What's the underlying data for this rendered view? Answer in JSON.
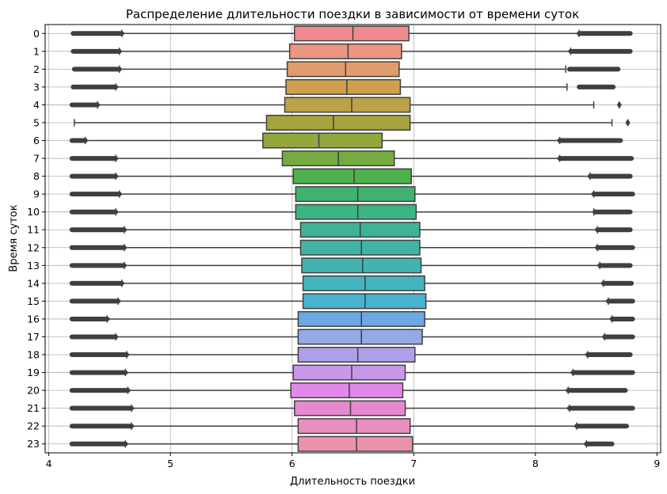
{
  "chart_data": {
    "type": "boxplot",
    "title": "Распределение длительности поездки в зависимости от времени суток",
    "xlabel": "Длительность поездки",
    "ylabel": "Время суток",
    "xlim": [
      3.97,
      9.03
    ],
    "xticks": [
      "4",
      "5",
      "6",
      "7",
      "8",
      "9"
    ],
    "orientation": "horizontal",
    "grid": true,
    "boxes": [
      {
        "label": "0",
        "color": "#ef8a91",
        "whisker_low": 4.6,
        "q1": 6.02,
        "median": 6.5,
        "q3": 6.96,
        "whisker_high": 8.36,
        "outliers_low": [
          4.2,
          4.6
        ],
        "outliers_high": [
          8.36,
          8.78
        ]
      },
      {
        "label": "1",
        "color": "#e99782",
        "whisker_low": 4.58,
        "q1": 5.98,
        "median": 6.46,
        "q3": 6.9,
        "whisker_high": 8.29,
        "outliers_low": [
          4.2,
          4.58
        ],
        "outliers_high": [
          8.29,
          8.78
        ]
      },
      {
        "label": "2",
        "color": "#e19c6c",
        "whisker_low": 4.58,
        "q1": 5.96,
        "median": 6.44,
        "q3": 6.88,
        "whisker_high": 8.25,
        "outliers_low": [
          4.21,
          4.58
        ],
        "outliers_high": [
          8.28,
          8.68
        ]
      },
      {
        "label": "3",
        "color": "#d09f4e",
        "whisker_low": 4.55,
        "q1": 5.95,
        "median": 6.45,
        "q3": 6.89,
        "whisker_high": 8.26,
        "outliers_low": [
          4.2,
          4.55
        ],
        "outliers_high": [
          8.36,
          8.64
        ]
      },
      {
        "label": "4",
        "color": "#bba347",
        "whisker_low": 4.4,
        "q1": 5.94,
        "median": 6.49,
        "q3": 6.97,
        "whisker_high": 8.48,
        "outliers_low": [
          4.19,
          4.4
        ],
        "outliers_high": [
          8.69,
          8.69
        ]
      },
      {
        "label": "5",
        "color": "#a7a43f",
        "whisker_low": 4.21,
        "q1": 5.79,
        "median": 6.34,
        "q3": 6.97,
        "whisker_high": 8.63,
        "outliers_low": [],
        "outliers_high": [
          8.76,
          8.76
        ]
      },
      {
        "label": "6",
        "color": "#92a73e",
        "whisker_low": 4.3,
        "q1": 5.76,
        "median": 6.22,
        "q3": 6.74,
        "whisker_high": 8.2,
        "outliers_low": [
          4.19,
          4.3
        ],
        "outliers_high": [
          8.2,
          8.7
        ]
      },
      {
        "label": "7",
        "color": "#74ac41",
        "whisker_low": 4.55,
        "q1": 5.92,
        "median": 6.38,
        "q3": 6.84,
        "whisker_high": 8.2,
        "outliers_low": [
          4.19,
          4.55
        ],
        "outliers_high": [
          8.2,
          8.79
        ]
      },
      {
        "label": "8",
        "color": "#4cb04d",
        "whisker_low": 4.55,
        "q1": 6.01,
        "median": 6.51,
        "q3": 6.98,
        "whisker_high": 8.45,
        "outliers_low": [
          4.19,
          4.55
        ],
        "outliers_high": [
          8.45,
          8.78
        ]
      },
      {
        "label": "9",
        "color": "#3db36f",
        "whisker_low": 4.58,
        "q1": 6.03,
        "median": 6.54,
        "q3": 7.01,
        "whisker_high": 8.48,
        "outliers_low": [
          4.19,
          4.58
        ],
        "outliers_high": [
          8.48,
          8.8
        ]
      },
      {
        "label": "10",
        "color": "#3eb383",
        "whisker_low": 4.55,
        "q1": 6.03,
        "median": 6.54,
        "q3": 7.02,
        "whisker_high": 8.48,
        "outliers_low": [
          4.19,
          4.55
        ],
        "outliers_high": [
          8.49,
          8.78
        ]
      },
      {
        "label": "11",
        "color": "#3fb395",
        "whisker_low": 4.62,
        "q1": 6.07,
        "median": 6.56,
        "q3": 7.05,
        "whisker_high": 8.51,
        "outliers_low": [
          4.19,
          4.62
        ],
        "outliers_high": [
          8.51,
          8.78
        ]
      },
      {
        "label": "12",
        "color": "#41b3a3",
        "whisker_low": 4.62,
        "q1": 6.07,
        "median": 6.57,
        "q3": 7.05,
        "whisker_high": 8.51,
        "outliers_low": [
          4.19,
          4.62
        ],
        "outliers_high": [
          8.51,
          8.8
        ]
      },
      {
        "label": "13",
        "color": "#42b3b1",
        "whisker_low": 4.62,
        "q1": 6.08,
        "median": 6.58,
        "q3": 7.06,
        "whisker_high": 8.53,
        "outliers_low": [
          4.19,
          4.62
        ],
        "outliers_high": [
          8.53,
          8.78
        ]
      },
      {
        "label": "14",
        "color": "#44b4bf",
        "whisker_low": 4.6,
        "q1": 6.09,
        "median": 6.6,
        "q3": 7.09,
        "whisker_high": 8.56,
        "outliers_low": [
          4.19,
          4.6
        ],
        "outliers_high": [
          8.56,
          8.79
        ]
      },
      {
        "label": "15",
        "color": "#48b2cf",
        "whisker_low": 4.57,
        "q1": 6.09,
        "median": 6.6,
        "q3": 7.1,
        "whisker_high": 8.6,
        "outliers_low": [
          4.19,
          4.57
        ],
        "outliers_high": [
          8.6,
          8.8
        ]
      },
      {
        "label": "16",
        "color": "#6aa9e3",
        "whisker_low": 4.48,
        "q1": 6.05,
        "median": 6.57,
        "q3": 7.09,
        "whisker_high": 8.63,
        "outliers_low": [
          4.19,
          4.48
        ],
        "outliers_high": [
          8.63,
          8.8
        ]
      },
      {
        "label": "17",
        "color": "#93aae4",
        "whisker_low": 4.55,
        "q1": 6.05,
        "median": 6.57,
        "q3": 7.07,
        "whisker_high": 8.57,
        "outliers_low": [
          4.19,
          4.55
        ],
        "outliers_high": [
          8.57,
          8.8
        ]
      },
      {
        "label": "18",
        "color": "#af9fe8",
        "whisker_low": 4.64,
        "q1": 6.05,
        "median": 6.54,
        "q3": 7.01,
        "whisker_high": 8.43,
        "outliers_low": [
          4.19,
          4.64
        ],
        "outliers_high": [
          8.43,
          8.78
        ]
      },
      {
        "label": "19",
        "color": "#c897ea",
        "whisker_low": 4.63,
        "q1": 6.01,
        "median": 6.49,
        "q3": 6.93,
        "whisker_high": 8.31,
        "outliers_low": [
          4.19,
          4.63
        ],
        "outliers_high": [
          8.31,
          8.8
        ]
      },
      {
        "label": "20",
        "color": "#e188ea",
        "whisker_low": 4.65,
        "q1": 5.99,
        "median": 6.47,
        "q3": 6.91,
        "whisker_high": 8.27,
        "outliers_low": [
          4.19,
          4.65
        ],
        "outliers_high": [
          8.27,
          8.74
        ]
      },
      {
        "label": "21",
        "color": "#e689d0",
        "whisker_low": 4.68,
        "q1": 6.02,
        "median": 6.48,
        "q3": 6.93,
        "whisker_high": 8.28,
        "outliers_low": [
          4.19,
          4.68
        ],
        "outliers_high": [
          8.28,
          8.8
        ]
      },
      {
        "label": "22",
        "color": "#e78fbe",
        "whisker_low": 4.68,
        "q1": 6.05,
        "median": 6.53,
        "q3": 6.97,
        "whisker_high": 8.34,
        "outliers_low": [
          4.19,
          4.68
        ],
        "outliers_high": [
          8.34,
          8.75
        ]
      },
      {
        "label": "23",
        "color": "#ea93ab",
        "whisker_low": 4.63,
        "q1": 6.05,
        "median": 6.53,
        "q3": 6.99,
        "whisker_high": 8.42,
        "outliers_low": [
          4.19,
          4.63
        ],
        "outliers_high": [
          8.42,
          8.63
        ]
      }
    ]
  }
}
